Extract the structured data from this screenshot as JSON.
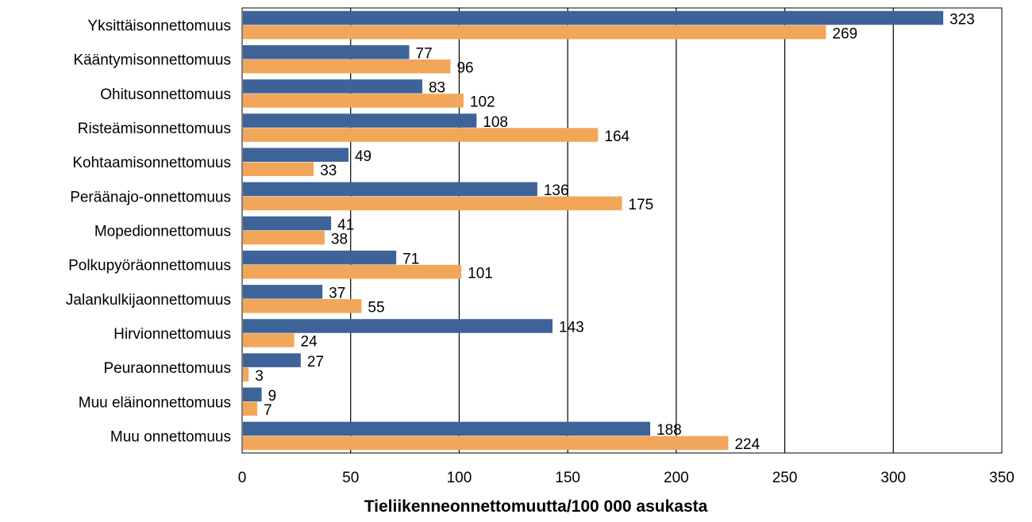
{
  "chart_data": {
    "type": "bar",
    "orientation": "horizontal",
    "categories": [
      "Yksittäisonnettomuus",
      "Kääntymisonnettomuus",
      "Ohitusonnettomuus",
      "Risteämisonnettomuus",
      "Kohtaamisonnettomuus",
      "Peräänajo-onnettomuus",
      "Mopedionnettomuus",
      "Polkupyöräonnettomuus",
      "Jalankulkijaonnettomuus",
      "Hirvionnettomuus",
      "Peuraonnettomuus",
      "Muu eläinonnettomuus",
      "Muu onnettomuus"
    ],
    "series": [
      {
        "color": "#3d6399",
        "values": [
          323,
          77,
          83,
          108,
          49,
          136,
          41,
          71,
          37,
          143,
          27,
          9,
          188
        ]
      },
      {
        "color": "#f2a65a",
        "values": [
          269,
          96,
          102,
          164,
          33,
          175,
          38,
          101,
          55,
          24,
          3,
          7,
          224
        ]
      }
    ],
    "xlabel": "Tieliikenneonnettomuutta/100 000 asukasta",
    "xlim": [
      0,
      350
    ],
    "xticks": [
      0,
      50,
      100,
      150,
      200,
      250,
      300,
      350
    ],
    "grid": "vertical"
  }
}
